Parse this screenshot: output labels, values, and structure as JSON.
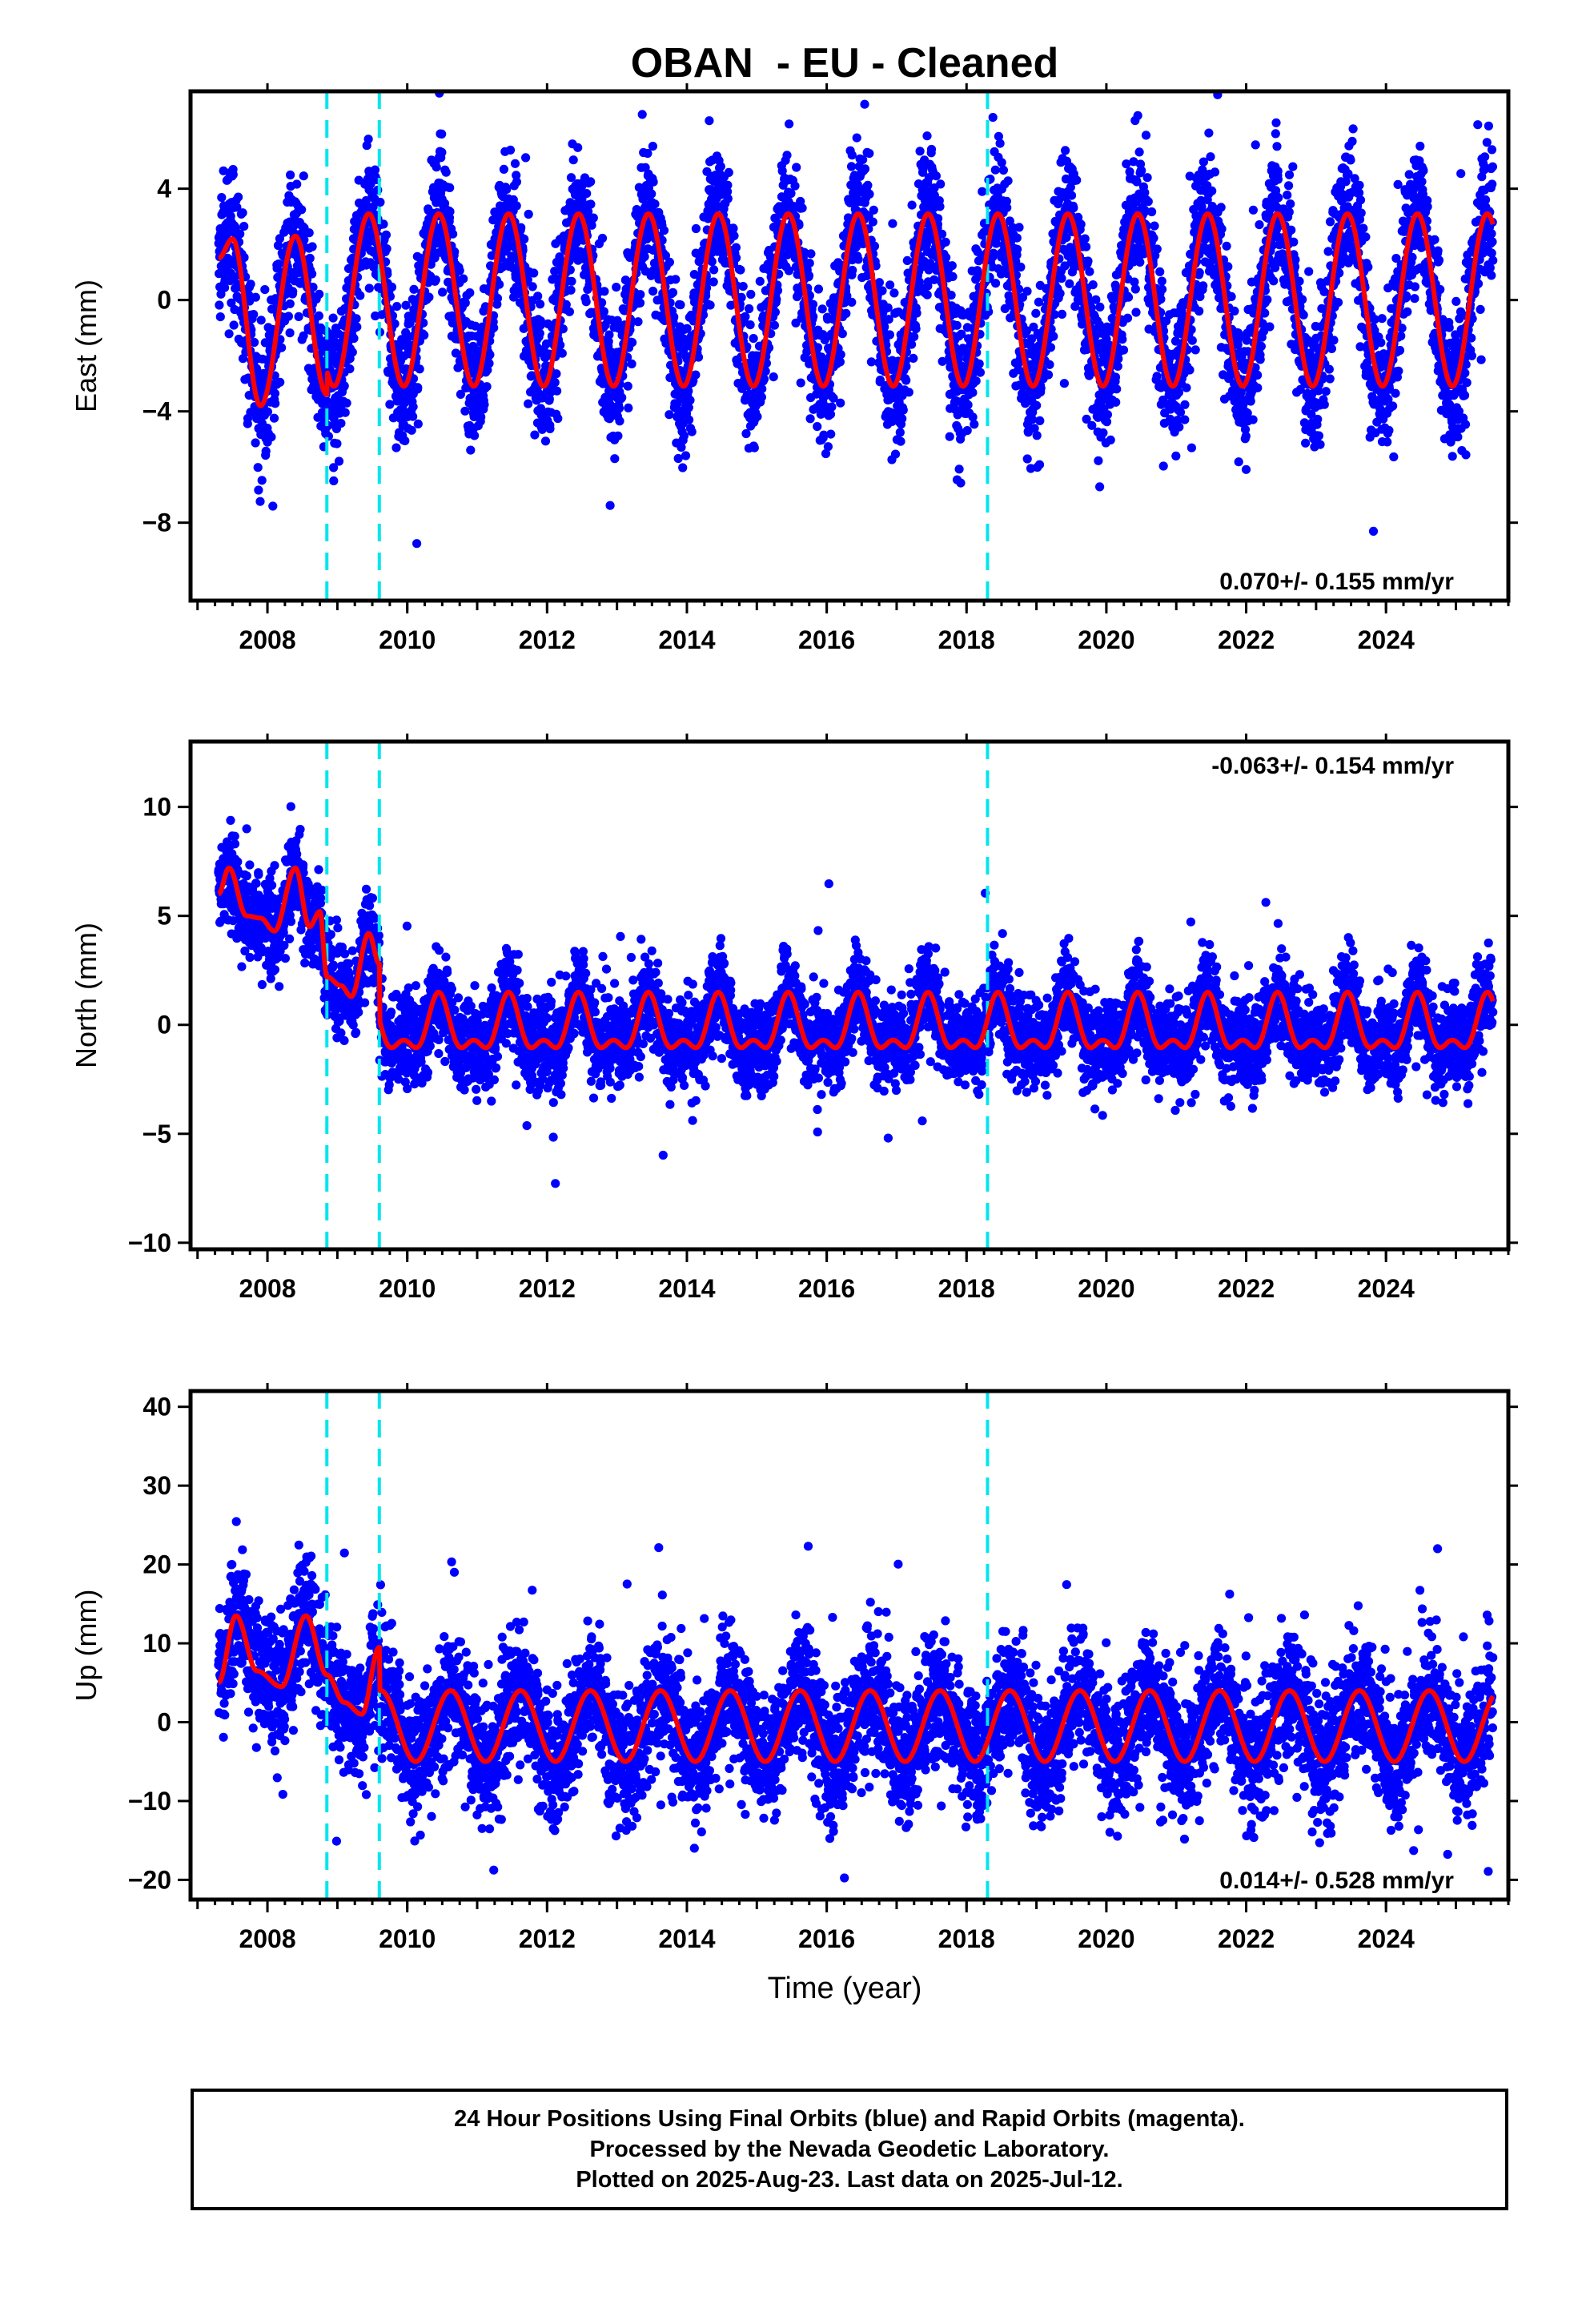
{
  "chart_title": "OBAN  - EU - Cleaned",
  "x_axis_label": "Time (year)",
  "caption_lines": [
    "24 Hour Positions Using Final Orbits (blue) and Rapid Orbits (magenta).",
    "Processed by the Nevada Geodetic Laboratory.",
    "Plotted on 2025-Aug-23. Last data on 2025-Jul-12."
  ],
  "colors": {
    "data_points": "#0000ff",
    "model_fit": "#ff0000",
    "events": "#00e5ee",
    "axes": "#000000"
  },
  "chart_data": [
    {
      "type": "scatter",
      "component": "East",
      "ylabel": "East (mm)",
      "xlim": [
        2006.9,
        2025.75
      ],
      "ylim": [
        -10.8,
        7.5
      ],
      "xticks": [
        2008,
        2010,
        2012,
        2014,
        2016,
        2018,
        2020,
        2022,
        2024
      ],
      "yticks": [
        4,
        0,
        -4,
        -8
      ],
      "ytick_labels": [
        "4",
        "0",
        "−4",
        "−8"
      ],
      "rate_label": "0.070+/- 0.155 mm/yr",
      "event_lines": [
        2008.85,
        2009.6,
        2018.3
      ],
      "data_range": [
        2007.3,
        2025.53
      ],
      "model": {
        "offset": 0.0,
        "annual_amplitude": 3.1,
        "annual_peak": 0.45,
        "semiannual_amplitude": 0.0,
        "scatter_sd": 1.2
      },
      "model_segments": [
        {
          "x": [
            2007.3,
            2007.5,
            2007.9,
            2008.4,
            2008.85
          ],
          "y": [
            1.5,
            2.2,
            -3.8,
            2.3,
            -3.4
          ]
        }
      ]
    },
    {
      "type": "scatter",
      "component": "North",
      "ylabel": "North (mm)",
      "xlim": [
        2006.9,
        2025.75
      ],
      "ylim": [
        -10.3,
        13.0
      ],
      "xticks": [
        2008,
        2010,
        2012,
        2014,
        2016,
        2018,
        2020,
        2022,
        2024
      ],
      "yticks": [
        10,
        5,
        0,
        -5,
        -10
      ],
      "ytick_labels": [
        "10",
        "5",
        "0",
        "−5",
        "−10"
      ],
      "rate_label": "-0.063+/- 0.154 mm/yr",
      "event_lines": [
        2008.85,
        2009.6,
        2018.3
      ],
      "data_range": [
        2007.3,
        2025.53
      ],
      "model": {
        "offset": -0.2,
        "annual_amplitude": 1.1,
        "annual_peak": 0.45,
        "semiannual_amplitude": 0.6,
        "scatter_sd": 1.0
      },
      "model_segments": [
        {
          "x": [
            2007.3,
            2007.45,
            2007.7,
            2007.9,
            2008.1,
            2008.4,
            2008.6,
            2008.75,
            2008.85
          ],
          "y": [
            6.0,
            7.2,
            5.0,
            4.9,
            4.3,
            7.2,
            4.5,
            5.2,
            2.2
          ]
        },
        {
          "x": [
            2008.85,
            2009.05,
            2009.2,
            2009.45,
            2009.6
          ],
          "y": [
            2.2,
            1.8,
            1.3,
            4.2,
            2.8
          ]
        }
      ]
    },
    {
      "type": "scatter",
      "component": "Up",
      "ylabel": "Up (mm)",
      "xlim": [
        2006.9,
        2025.75
      ],
      "ylim": [
        -22.5,
        42.0
      ],
      "xticks": [
        2008,
        2010,
        2012,
        2014,
        2016,
        2018,
        2020,
        2022,
        2024
      ],
      "yticks": [
        40,
        30,
        20,
        10,
        0,
        -10,
        -20
      ],
      "ytick_labels": [
        "40",
        "30",
        "20",
        "10",
        "0",
        "−10",
        "−20"
      ],
      "rate_label": "0.014+/- 0.528 mm/yr",
      "event_lines": [
        2008.85,
        2009.6,
        2018.3
      ],
      "data_range": [
        2007.3,
        2025.53
      ],
      "model": {
        "offset": -0.5,
        "annual_amplitude": 4.5,
        "annual_peak": 0.62,
        "semiannual_amplitude": 0.0,
        "scatter_sd": 4.0
      },
      "model_segments": [
        {
          "x": [
            2007.3,
            2007.55,
            2007.85,
            2008.2,
            2008.55,
            2008.85
          ],
          "y": [
            5.0,
            13.5,
            6.5,
            4.5,
            13.5,
            6.0
          ]
        },
        {
          "x": [
            2008.85,
            2009.1,
            2009.35,
            2009.6
          ],
          "y": [
            6.0,
            2.5,
            1.0,
            9.5
          ]
        }
      ]
    }
  ]
}
